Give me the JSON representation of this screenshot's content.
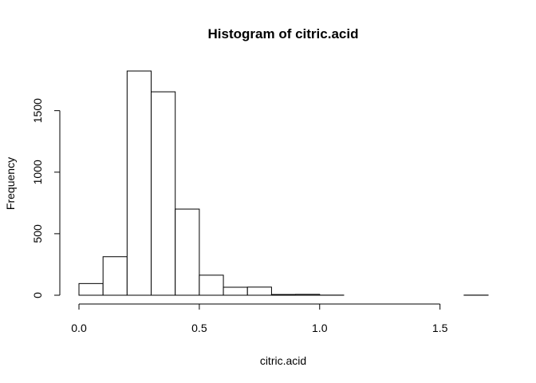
{
  "chart_data": {
    "type": "bar",
    "title": "Histogram of citric.acid",
    "xlabel": "citric.acid",
    "ylabel": "Frequency",
    "bins": [
      {
        "start": 0.0,
        "end": 0.1,
        "count": 95
      },
      {
        "start": 0.1,
        "end": 0.2,
        "count": 313
      },
      {
        "start": 0.2,
        "end": 0.3,
        "count": 1822
      },
      {
        "start": 0.3,
        "end": 0.4,
        "count": 1653
      },
      {
        "start": 0.4,
        "end": 0.5,
        "count": 700
      },
      {
        "start": 0.5,
        "end": 0.6,
        "count": 163
      },
      {
        "start": 0.6,
        "end": 0.7,
        "count": 65
      },
      {
        "start": 0.7,
        "end": 0.8,
        "count": 66
      },
      {
        "start": 0.8,
        "end": 0.9,
        "count": 6
      },
      {
        "start": 0.9,
        "end": 1.0,
        "count": 7
      },
      {
        "start": 1.0,
        "end": 1.1,
        "count": 1
      },
      {
        "start": 1.1,
        "end": 1.2,
        "count": 0
      },
      {
        "start": 1.2,
        "end": 1.3,
        "count": 0
      },
      {
        "start": 1.3,
        "end": 1.4,
        "count": 0
      },
      {
        "start": 1.4,
        "end": 1.5,
        "count": 0
      },
      {
        "start": 1.5,
        "end": 1.6,
        "count": 0
      },
      {
        "start": 1.6,
        "end": 1.7,
        "count": 1
      }
    ],
    "x_ticks": [
      "0.0",
      "0.5",
      "1.0",
      "1.5"
    ],
    "x_tick_values": [
      0.0,
      0.5,
      1.0,
      1.5
    ],
    "y_ticks": [
      "0",
      "500",
      "1000",
      "1500"
    ],
    "y_tick_values": [
      0,
      500,
      1000,
      1500
    ],
    "xlim": [
      0.0,
      1.7
    ],
    "ylim": [
      0,
      1822
    ],
    "grid": false,
    "legend": "none"
  }
}
